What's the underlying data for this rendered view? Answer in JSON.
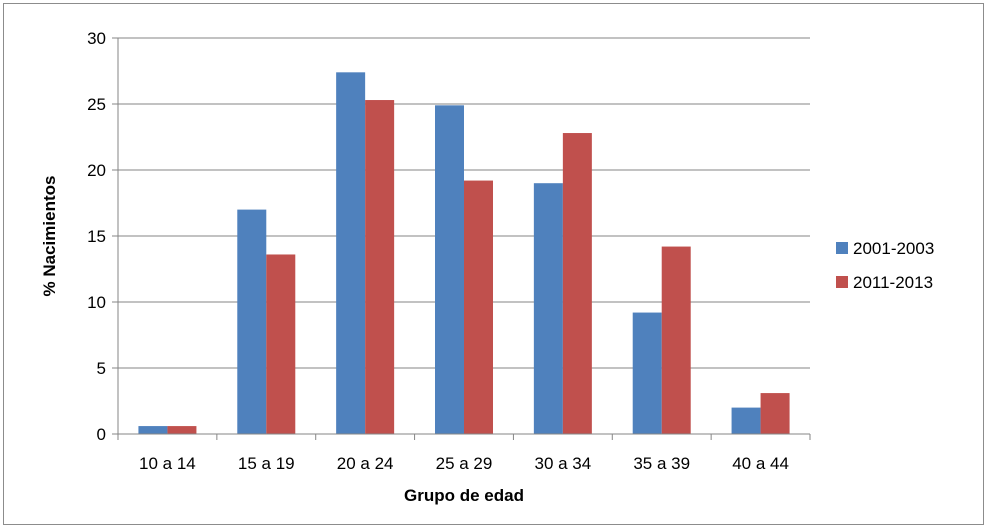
{
  "chart_data": {
    "type": "bar",
    "categories": [
      "10 a 14",
      "15 a 19",
      "20 a 24",
      "25 a 29",
      "30 a 34",
      "35 a 39",
      "40 a 44"
    ],
    "series": [
      {
        "name": "2001-2003",
        "color": "#4F81BD",
        "values": [
          0.6,
          17.0,
          27.4,
          24.9,
          19.0,
          9.2,
          2.0
        ]
      },
      {
        "name": "2011-2013",
        "color": "#C0504D",
        "values": [
          0.6,
          13.6,
          25.3,
          19.2,
          22.8,
          14.2,
          3.1
        ]
      }
    ],
    "title": "",
    "xlabel": "Grupo de edad",
    "ylabel": "% Nacimientos",
    "ylim": [
      0,
      30
    ],
    "yticks": [
      "0",
      "5",
      "10",
      "15",
      "20",
      "25",
      "30"
    ],
    "grid": true,
    "legend_position": "right"
  }
}
